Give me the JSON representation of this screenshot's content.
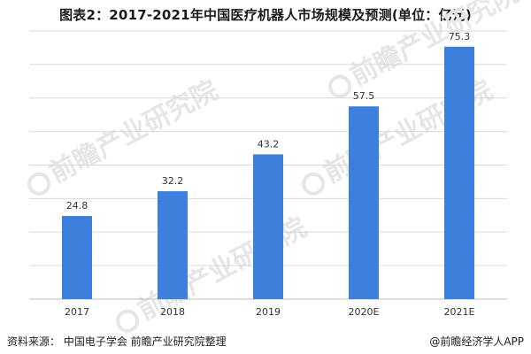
{
  "title": "图表2：2017-2021年中国医疗机器人市场规模及预测(单位：亿元)",
  "footer": {
    "source": "资料来源：  中国电子学会    前瞻产业研究院整理",
    "brand": "@前瞻经济学人APP"
  },
  "watermark": {
    "text": "前瞻产业研究院"
  },
  "colors": {
    "bar": "#3d7fdc",
    "grid": "#d9d9d9",
    "axis": "#bfbfbf",
    "label": "#333333"
  },
  "chart_data": {
    "type": "bar",
    "title": "图表2：2017-2021年中国医疗机器人市场规模及预测(单位：亿元)",
    "categories": [
      "2017",
      "2018",
      "2019",
      "2020E",
      "2021E"
    ],
    "values": [
      24.8,
      32.2,
      43.2,
      57.5,
      75.3
    ],
    "value_labels": [
      "24.8",
      "32.2",
      "43.2",
      "57.5",
      "75.3"
    ],
    "xlabel": "",
    "ylabel": "",
    "ylim": [
      0,
      80
    ],
    "grid": true,
    "y_ticks_shown": false,
    "legend": "none"
  }
}
